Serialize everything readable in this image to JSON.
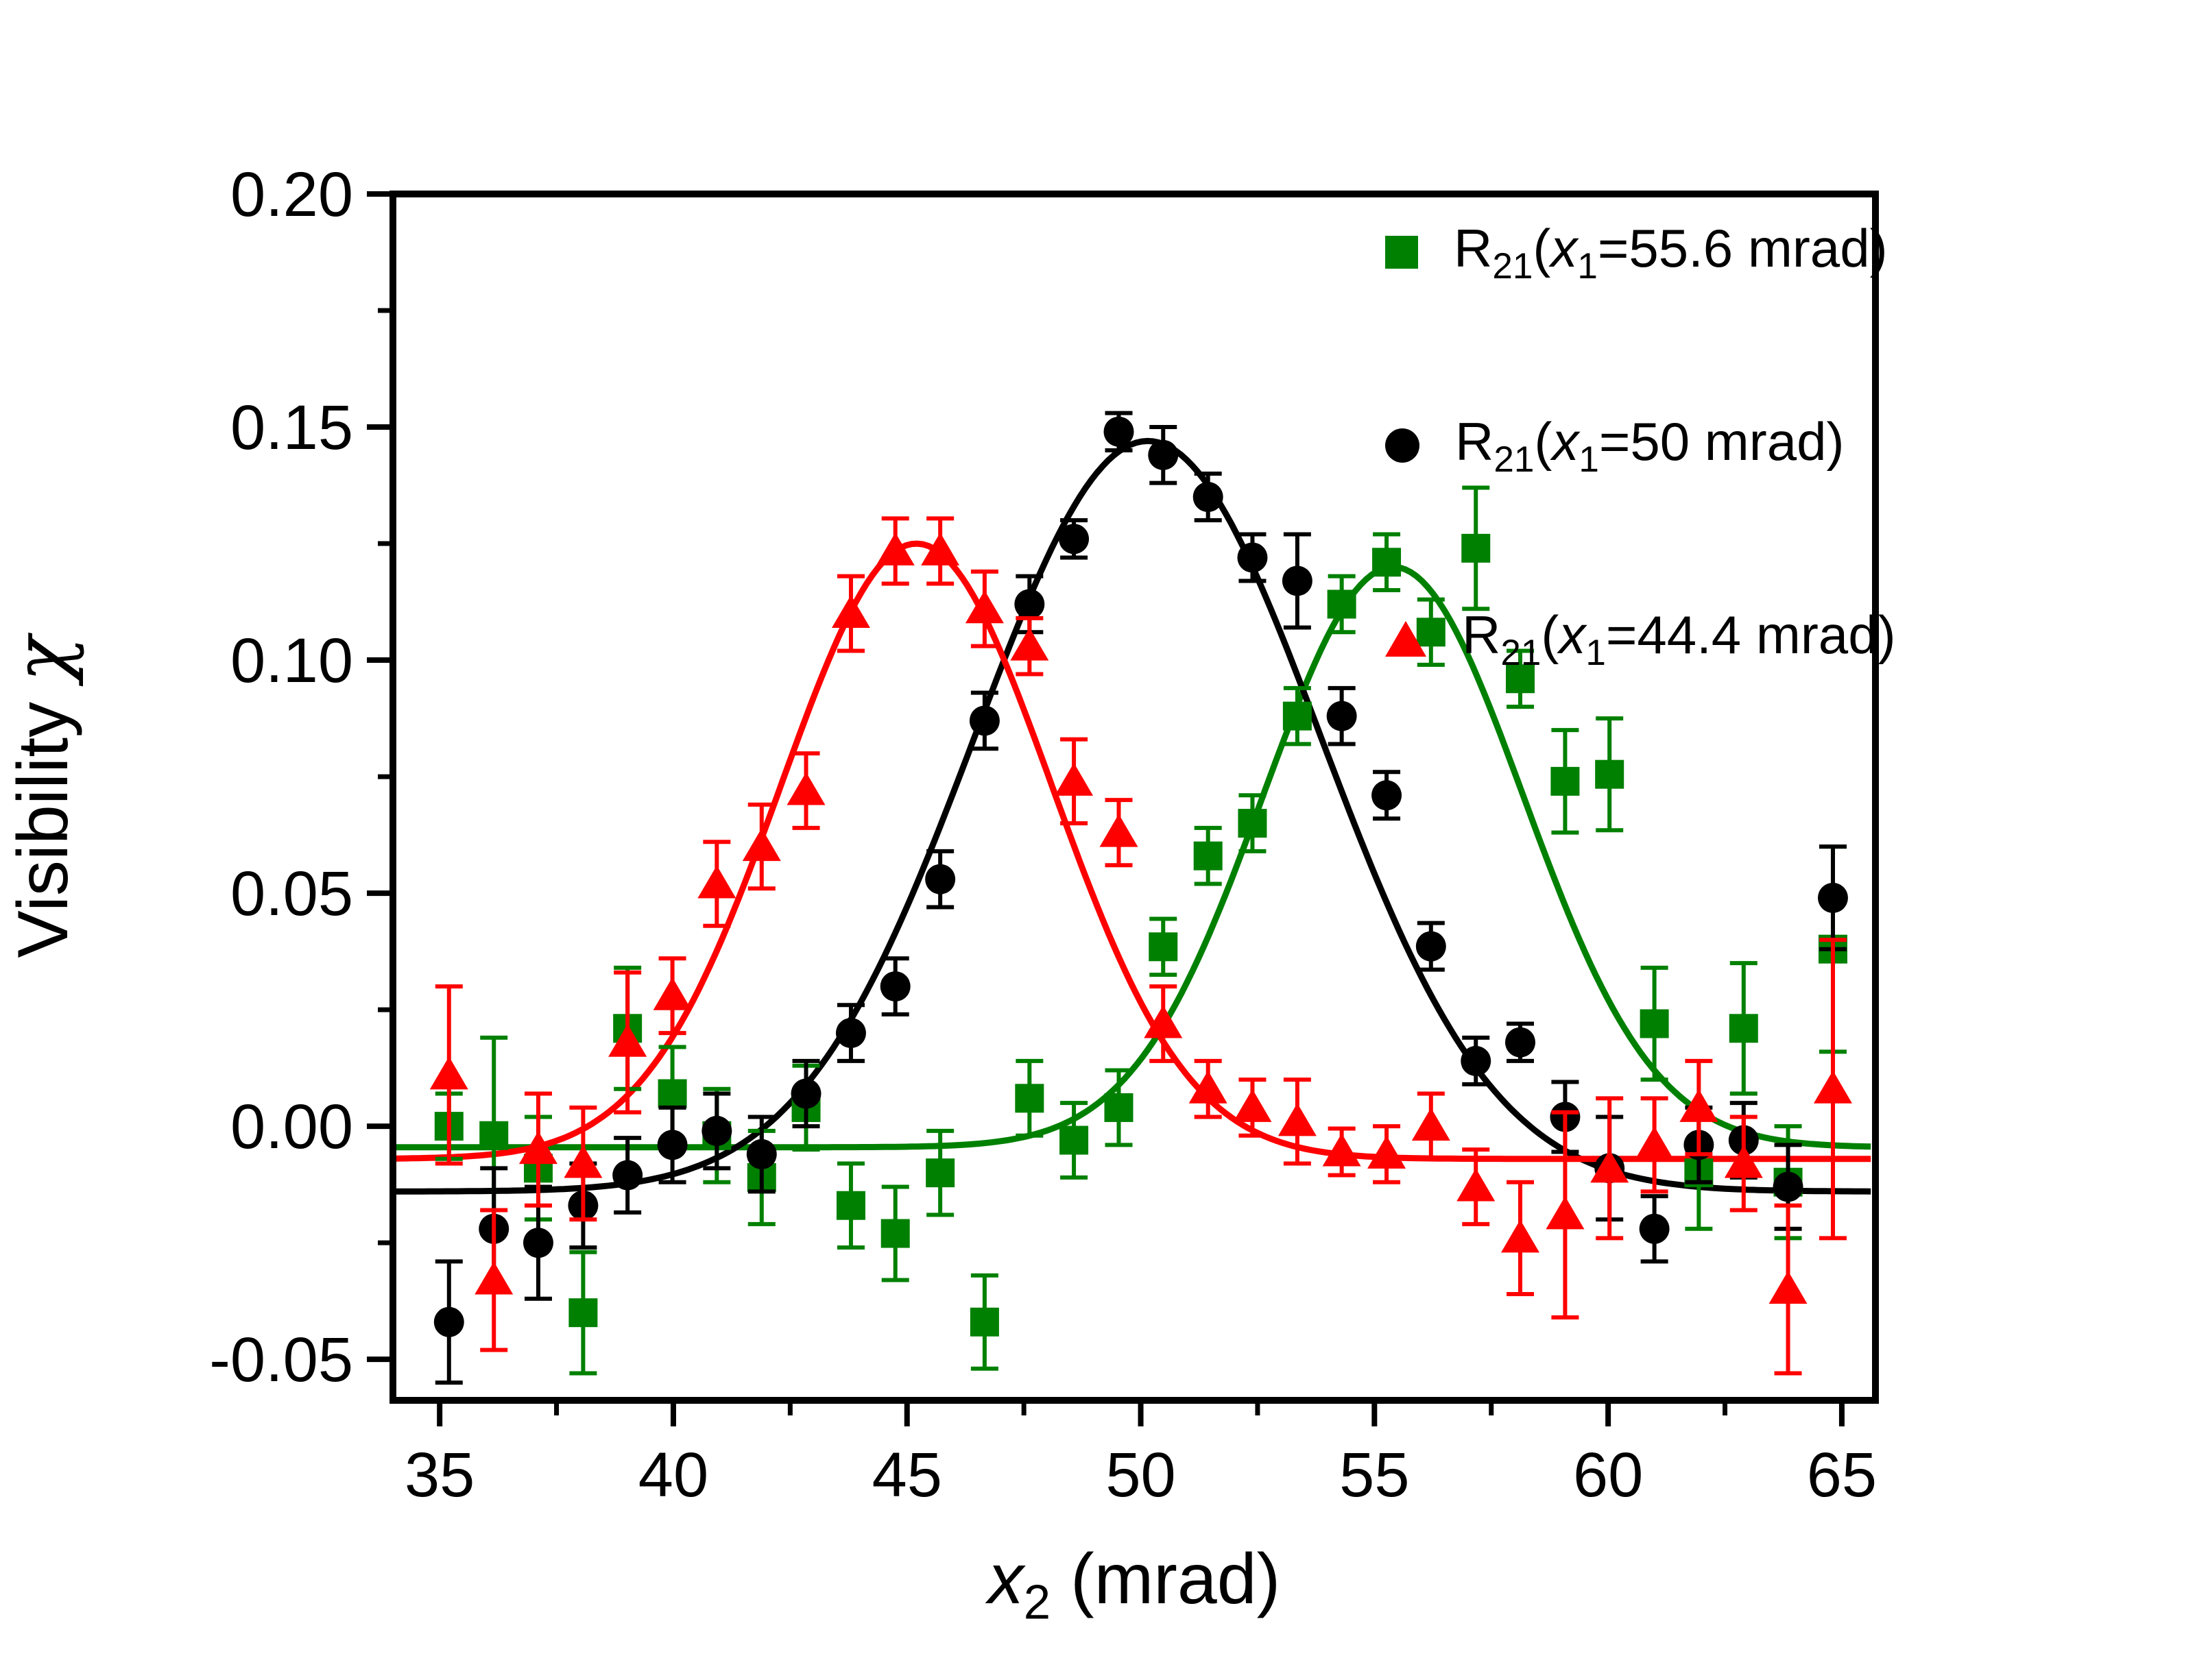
{
  "figure": {
    "background": "#ffffff",
    "frame_color": "#000000"
  },
  "chart_data": {
    "type": "scatter",
    "title": "",
    "grid": false,
    "legend_position": "top-right-inside",
    "xlabel_parts": {
      "base": "x",
      "sub": "2",
      "suffix": " (mrad)"
    },
    "ylabel_text": "Visibility ",
    "ylabel_symbol": "χ",
    "xlim": [
      34.0,
      65.72
    ],
    "ylim": [
      -0.0588,
      0.2
    ],
    "x_major_ticks": [
      35,
      40,
      45,
      50,
      55,
      60,
      65
    ],
    "x_major_tick_labels": [
      "35",
      "40",
      "45",
      "50",
      "55",
      "60",
      "65"
    ],
    "x_minor_ticks": [
      37.5,
      42.5,
      47.5,
      52.5,
      57.5,
      62.5
    ],
    "y_major_ticks": [
      0.2,
      0.15,
      0.1,
      0.05,
      0.0,
      -0.05
    ],
    "y_major_tick_labels": [
      "0.20",
      "0.15",
      "0.10",
      "0.05",
      "0.00",
      "-0.05"
    ],
    "y_minor_ticks": [
      0.175,
      0.125,
      0.075,
      0.025,
      -0.025
    ],
    "x": [
      35.2,
      36.16,
      37.11,
      38.07,
      39.02,
      39.98,
      40.93,
      41.89,
      42.84,
      43.8,
      44.75,
      45.71,
      46.66,
      47.62,
      48.57,
      49.53,
      50.48,
      51.44,
      52.39,
      53.35,
      54.3,
      55.26,
      56.21,
      57.17,
      58.12,
      59.08,
      60.03,
      60.99,
      61.94,
      62.9,
      63.85,
      64.81
    ],
    "series": [
      {
        "name": "green-squares",
        "marker": "square",
        "color": "#008000",
        "label_parts": {
          "r": "R",
          "r_sub": "21",
          "mid": "(x",
          "x_sub": "1",
          "suffix": "=55.6 mrad)"
        },
        "y": [
          0.0,
          -0.002,
          -0.009,
          -0.04,
          0.021,
          0.007,
          -0.002,
          -0.011,
          0.004,
          -0.017,
          -0.023,
          -0.01,
          -0.042,
          0.006,
          -0.003,
          0.004,
          0.0385,
          0.058,
          0.065,
          0.088,
          0.112,
          0.121,
          0.106,
          0.124,
          0.096,
          0.074,
          0.0755,
          0.022,
          -0.01,
          0.021,
          -0.012,
          0.038
        ],
        "err": [
          0.007,
          0.021,
          0.011,
          0.013,
          0.013,
          0.01,
          0.01,
          0.01,
          0.009,
          0.009,
          0.01,
          0.009,
          0.01,
          0.008,
          0.008,
          0.008,
          0.006,
          0.006,
          0.006,
          0.006,
          0.006,
          0.006,
          0.007,
          0.013,
          0.006,
          0.011,
          0.012,
          0.012,
          0.012,
          0.014,
          0.012,
          0.022
        ],
        "fit": {
          "baseline": -0.0045,
          "amplitude": 0.1245,
          "center": 55.4,
          "sigma": 2.78
        }
      },
      {
        "name": "black-circles",
        "marker": "circle",
        "color": "#000000",
        "label_parts": {
          "r": "R",
          "r_sub": "21",
          "mid": "(x",
          "x_sub": "1",
          "suffix": "=50 mrad)"
        },
        "y": [
          -0.042,
          -0.022,
          -0.025,
          -0.017,
          -0.0105,
          -0.004,
          -0.001,
          -0.006,
          0.007,
          0.02,
          0.03,
          0.053,
          0.087,
          0.112,
          0.126,
          0.149,
          0.144,
          0.135,
          0.122,
          0.117,
          0.088,
          0.071,
          0.0386,
          0.014,
          0.018,
          0.002,
          -0.009,
          -0.022,
          -0.004,
          -0.003,
          -0.013,
          0.049
        ],
        "err": [
          0.013,
          0.013,
          0.012,
          0.009,
          0.008,
          0.008,
          0.008,
          0.008,
          0.007,
          0.006,
          0.006,
          0.006,
          0.006,
          0.006,
          0.004,
          0.004,
          0.006,
          0.005,
          0.005,
          0.01,
          0.006,
          0.005,
          0.005,
          0.005,
          0.004,
          0.0075,
          0.011,
          0.007,
          0.008,
          0.008,
          0.009,
          0.011
        ],
        "fit": {
          "baseline": -0.014,
          "amplitude": 0.161,
          "center": 50.15,
          "sigma": 3.7
        }
      },
      {
        "name": "red-triangles",
        "marker": "triangle",
        "color": "#ff0000",
        "label_parts": {
          "r": "R",
          "r_sub": "21",
          "mid": "(x",
          "x_sub": "1",
          "suffix": "=44.4 mrad)"
        },
        "y": [
          0.011,
          -0.033,
          -0.005,
          -0.008,
          0.018,
          0.028,
          0.052,
          0.06,
          0.072,
          0.11,
          0.1234,
          0.1234,
          0.111,
          0.103,
          0.074,
          0.063,
          0.022,
          0.008,
          0.004,
          0.001,
          -0.0055,
          -0.006,
          0.0,
          -0.013,
          -0.024,
          -0.019,
          -0.009,
          -0.004,
          0.004,
          -0.008,
          -0.035,
          0.008
        ],
        "err": [
          0.019,
          0.015,
          0.012,
          0.012,
          0.015,
          0.008,
          0.009,
          0.009,
          0.008,
          0.008,
          0.007,
          0.007,
          0.008,
          0.006,
          0.009,
          0.007,
          0.008,
          0.006,
          0.006,
          0.009,
          0.005,
          0.006,
          0.007,
          0.008,
          0.012,
          0.022,
          0.015,
          0.01,
          0.01,
          0.01,
          0.018,
          0.032
        ],
        "fit": {
          "baseline": -0.007,
          "amplitude": 0.132,
          "center": 45.2,
          "sigma": 2.9
        }
      }
    ]
  }
}
